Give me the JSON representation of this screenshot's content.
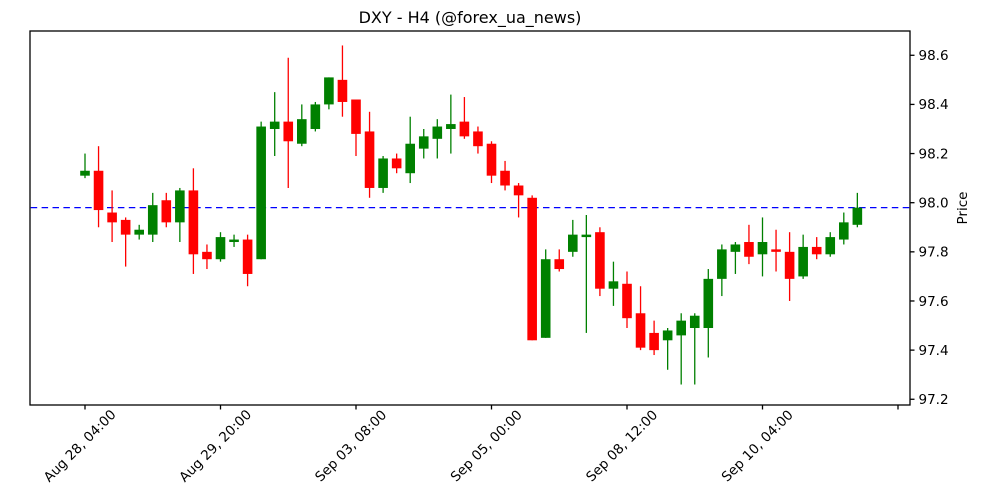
{
  "title": "DXY - H4 (@forex_ua_news)",
  "chart_data": {
    "type": "candlestick",
    "title": "DXY - H4 (@forex_ua_news)",
    "symbol": "DXY",
    "timeframe": "H4",
    "ylabel": "Price",
    "xlabel": "",
    "grid": false,
    "ylim": [
      97.18,
      98.7
    ],
    "y_ticks": [
      98.6,
      98.4,
      98.2,
      98.0,
      97.8,
      97.6,
      97.4,
      97.2
    ],
    "y_tick_side": "right",
    "x_ticks": [
      {
        "slot": 0,
        "label": "Aug 28, 04:00"
      },
      {
        "slot": 10,
        "label": "Aug 29, 20:00"
      },
      {
        "slot": 20,
        "label": "Sep 03, 08:00"
      },
      {
        "slot": 30,
        "label": "Sep 05, 00:00"
      },
      {
        "slot": 40,
        "label": "Sep 08, 12:00"
      },
      {
        "slot": 50,
        "label": "Sep 10, 04:00"
      },
      {
        "slot": 60,
        "label": ""
      }
    ],
    "hline": {
      "value": 97.98,
      "color": "#0000ff",
      "style": "dashed"
    },
    "up_color": "#008000",
    "down_color": "#ff0000",
    "axis_color": "#000000",
    "background_color": "#ffffff",
    "candle_columns": [
      "open",
      "high",
      "low",
      "close"
    ],
    "candles": [
      [
        98.11,
        98.2,
        98.1,
        98.13
      ],
      [
        98.13,
        98.23,
        97.9,
        97.97
      ],
      [
        97.96,
        98.05,
        97.84,
        97.92
      ],
      [
        97.93,
        97.94,
        97.74,
        97.87
      ],
      [
        97.87,
        97.91,
        97.85,
        97.89
      ],
      [
        97.87,
        98.04,
        97.84,
        97.99
      ],
      [
        98.01,
        98.04,
        97.9,
        97.92
      ],
      [
        97.92,
        98.06,
        97.84,
        98.05
      ],
      [
        98.05,
        98.14,
        97.71,
        97.79
      ],
      [
        97.8,
        97.83,
        97.73,
        97.77
      ],
      [
        97.77,
        97.88,
        97.76,
        97.86
      ],
      [
        97.84,
        97.87,
        97.82,
        97.85
      ],
      [
        97.85,
        97.87,
        97.66,
        97.71
      ],
      [
        97.77,
        98.33,
        97.77,
        98.31
      ],
      [
        98.3,
        98.45,
        98.19,
        98.33
      ],
      [
        98.33,
        98.59,
        98.06,
        98.25
      ],
      [
        98.24,
        98.4,
        98.23,
        98.34
      ],
      [
        98.3,
        98.41,
        98.29,
        98.4
      ],
      [
        98.4,
        98.51,
        98.38,
        98.51
      ],
      [
        98.5,
        98.64,
        98.35,
        98.41
      ],
      [
        98.42,
        98.42,
        98.19,
        98.28
      ],
      [
        98.29,
        98.37,
        98.02,
        98.06
      ],
      [
        98.06,
        98.19,
        98.04,
        98.18
      ],
      [
        98.18,
        98.2,
        98.12,
        98.14
      ],
      [
        98.12,
        98.35,
        98.08,
        98.24
      ],
      [
        98.22,
        98.3,
        98.18,
        98.27
      ],
      [
        98.26,
        98.34,
        98.18,
        98.31
      ],
      [
        98.3,
        98.44,
        98.2,
        98.32
      ],
      [
        98.33,
        98.43,
        98.26,
        98.27
      ],
      [
        98.29,
        98.31,
        98.2,
        98.23
      ],
      [
        98.24,
        98.25,
        98.08,
        98.11
      ],
      [
        98.13,
        98.17,
        98.05,
        98.07
      ],
      [
        98.07,
        98.08,
        97.94,
        98.03
      ],
      [
        98.02,
        98.03,
        97.44,
        97.44
      ],
      [
        97.45,
        97.81,
        97.45,
        97.77
      ],
      [
        97.77,
        97.81,
        97.72,
        97.73
      ],
      [
        97.8,
        97.93,
        97.78,
        97.87
      ],
      [
        97.86,
        97.95,
        97.47,
        97.87
      ],
      [
        97.88,
        97.9,
        97.62,
        97.65
      ],
      [
        97.65,
        97.76,
        97.58,
        97.68
      ],
      [
        97.67,
        97.72,
        97.49,
        97.53
      ],
      [
        97.55,
        97.66,
        97.4,
        97.41
      ],
      [
        97.47,
        97.52,
        97.38,
        97.4
      ],
      [
        97.44,
        97.49,
        97.32,
        97.48
      ],
      [
        97.46,
        97.55,
        97.26,
        97.52
      ],
      [
        97.49,
        97.55,
        97.26,
        97.54
      ],
      [
        97.49,
        97.73,
        97.37,
        97.69
      ],
      [
        97.69,
        97.83,
        97.62,
        97.81
      ],
      [
        97.8,
        97.84,
        97.71,
        97.83
      ],
      [
        97.84,
        97.91,
        97.75,
        97.78
      ],
      [
        97.79,
        97.94,
        97.7,
        97.84
      ],
      [
        97.81,
        97.89,
        97.72,
        97.8
      ],
      [
        97.8,
        97.88,
        97.6,
        97.69
      ],
      [
        97.7,
        97.87,
        97.69,
        97.82
      ],
      [
        97.82,
        97.86,
        97.77,
        97.79
      ],
      [
        97.79,
        97.88,
        97.78,
        97.86
      ],
      [
        97.85,
        97.96,
        97.83,
        97.92
      ],
      [
        97.91,
        98.04,
        97.9,
        97.98
      ]
    ]
  }
}
